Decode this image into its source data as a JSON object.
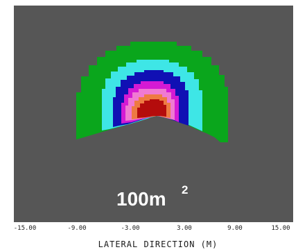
{
  "chart_data": {
    "type": "heatmap",
    "xlabel": "LATERAL DIRECTION (M)",
    "x_ticks": [
      "-15.00",
      "-9.00",
      "-3.00",
      "3.00",
      "9.00",
      "15.00"
    ],
    "annotation": {
      "text": "100m",
      "superscript": "2"
    },
    "colors": {
      "background": "#565656",
      "green": "#0aa61c",
      "cyan": "#3ee6e6",
      "blue": "#1010b4",
      "magenta": "#d41ad4",
      "pink": "#f07ad2",
      "orange": "#ee7a42",
      "red": "#b40c0c"
    }
  }
}
